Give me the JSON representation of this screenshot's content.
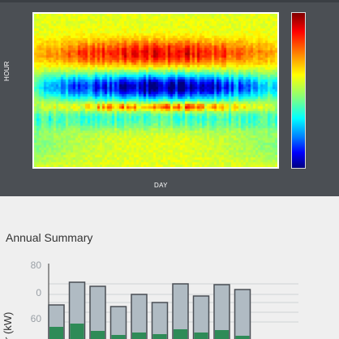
{
  "heatmap": {
    "y_label": "HOUR",
    "x_label": "DAY",
    "colorscale": [
      "#00007f",
      "#0000ff",
      "#0080ff",
      "#00ffff",
      "#80ff80",
      "#ffff00",
      "#ff8000",
      "#ff0000",
      "#7f0000"
    ]
  },
  "summary": {
    "title": "Annual Summary"
  },
  "chart_data": [
    {
      "type": "heatmap",
      "xlabel": "DAY",
      "ylabel": "HOUR",
      "x_range": [
        1,
        365
      ],
      "y_range": [
        0,
        23
      ],
      "colorscale": "jet"
    },
    {
      "type": "bar",
      "title": "Annual Summary",
      "ylabel": "r (kW)",
      "yticks": [
        "80",
        "0",
        "60"
      ],
      "series": [
        {
          "values": [
            42,
            70,
            65,
            40,
            55,
            45,
            68,
            53,
            67,
            61
          ],
          "color": "#b0bbc3"
        },
        {
          "values": [
            15,
            19,
            10,
            5,
            8,
            6,
            12,
            8,
            11,
            4
          ],
          "color": "#2e8b57"
        }
      ],
      "grid": true
    }
  ]
}
